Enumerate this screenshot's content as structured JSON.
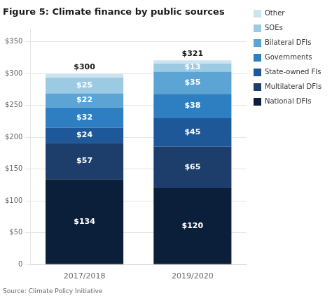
{
  "chart_data": {
    "type": "bar",
    "stacked": true,
    "title": "Figure 5: Climate finance by public sources",
    "annotations": [
      "Source: Climate Policy Initiative"
    ],
    "categories": [
      "2017/2018",
      "2019/2020"
    ],
    "series": [
      {
        "name": "National DFIs",
        "color": "#0b1f3a",
        "values": [
          134,
          120
        ],
        "value_labels": [
          "$134",
          "$120"
        ]
      },
      {
        "name": "Multilateral DFIs",
        "color": "#1d3d6b",
        "values": [
          57,
          65
        ],
        "value_labels": [
          "$57",
          "$65"
        ]
      },
      {
        "name": "State-owned FIs",
        "color": "#1e5899",
        "values": [
          24,
          45
        ],
        "value_labels": [
          "$24",
          "$45"
        ]
      },
      {
        "name": "Governments",
        "color": "#2e7fc1",
        "values": [
          32,
          38
        ],
        "value_labels": [
          "$32",
          "$38"
        ]
      },
      {
        "name": "Bilateral DFIs",
        "color": "#5ba4d4",
        "values": [
          22,
          35
        ],
        "value_labels": [
          "$22",
          "$35"
        ]
      },
      {
        "name": "SOEs",
        "color": "#9dcae3",
        "values": [
          25,
          13
        ],
        "value_labels": [
          "$25",
          "$13"
        ]
      },
      {
        "name": "Other",
        "color": "#cce4f0",
        "values": [
          6,
          5
        ],
        "value_labels": [
          null,
          null
        ]
      }
    ],
    "totals": [
      300,
      321
    ],
    "total_labels": [
      "$300",
      "$321"
    ],
    "data_labels": true,
    "ylim": [
      0,
      370
    ],
    "yticks": [
      0,
      {
        "value": 50,
        "label": "$50"
      },
      {
        "value": 100,
        "label": "$100"
      },
      {
        "value": 150,
        "label": "$150"
      },
      {
        "value": 200,
        "label": "$200"
      },
      {
        "value": 250,
        "label": "$250"
      },
      {
        "value": 300,
        "label": "$300"
      },
      {
        "value": 350,
        "label": "$350"
      }
    ],
    "grid": true,
    "legend": "right"
  }
}
